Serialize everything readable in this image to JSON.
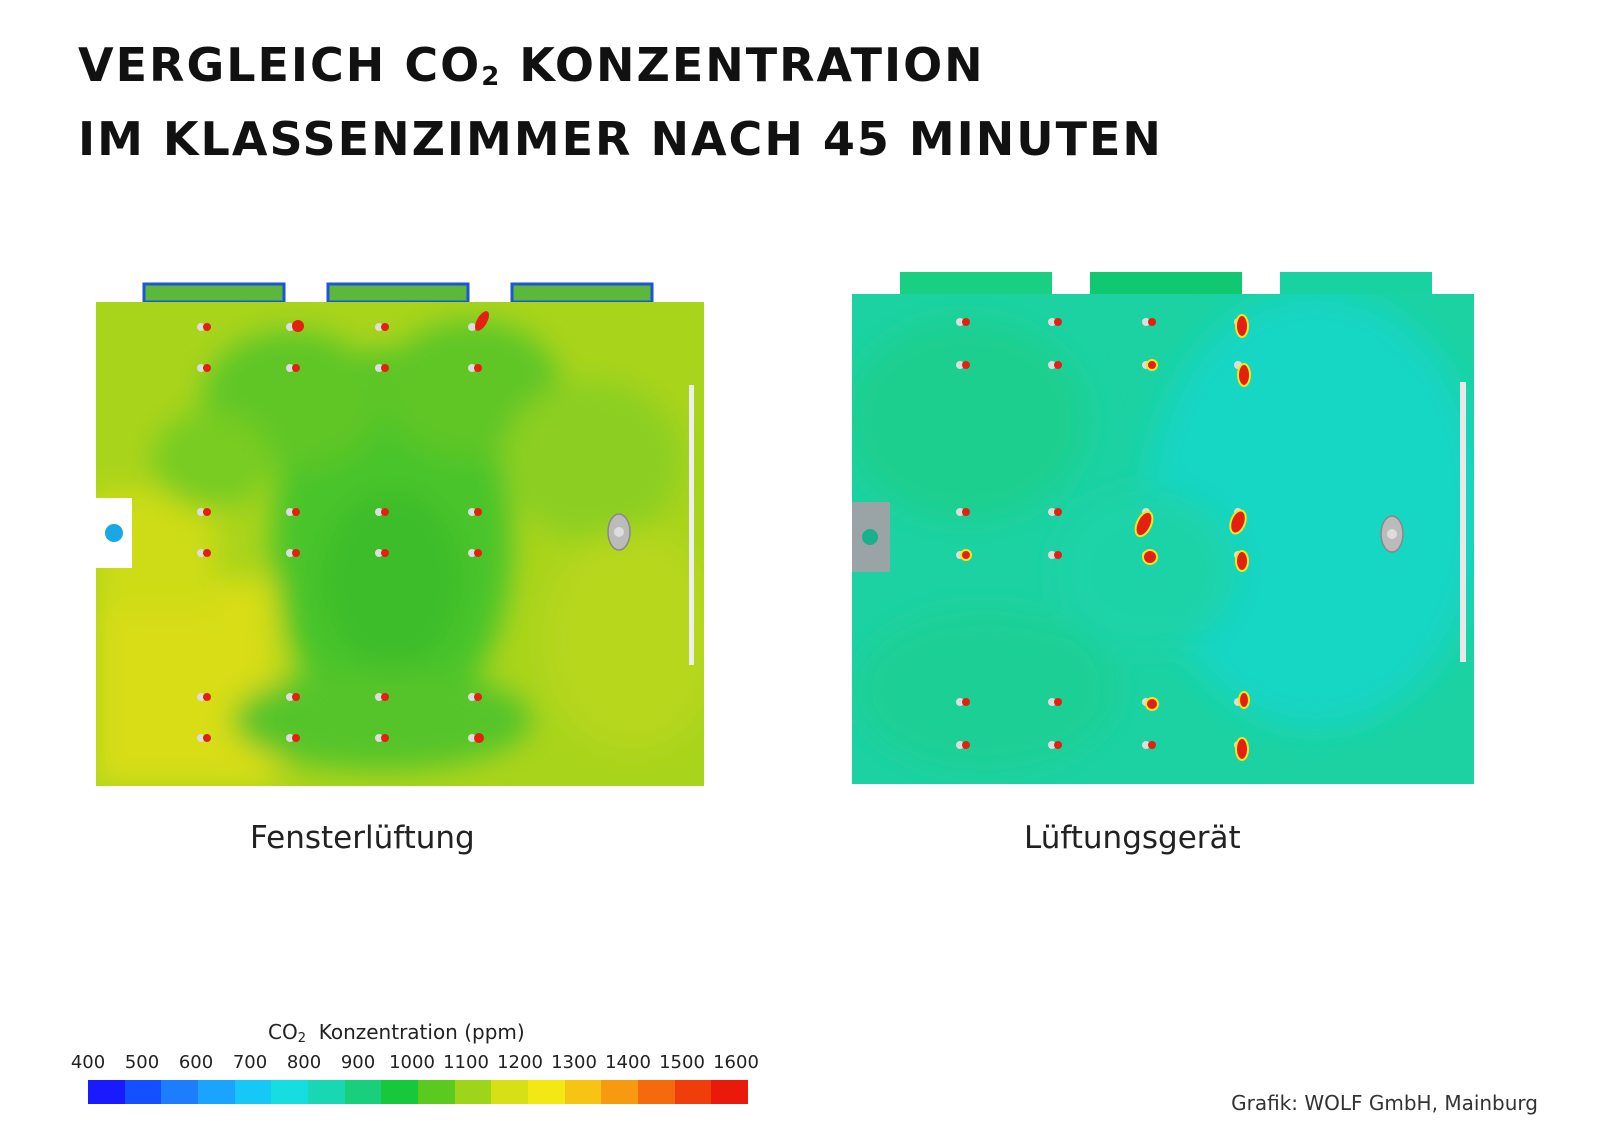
{
  "title": {
    "line1_prefix": "VERGLEICH CO",
    "line1_sub": "2",
    "line1_suffix": " KONZENTRATION",
    "line2": "IM KLASSENZIMMER NACH 45 MINUTEN"
  },
  "panels": [
    {
      "caption": "Fensterlüftung"
    },
    {
      "caption": "Lüftungsgerät"
    }
  ],
  "legend": {
    "title_prefix": "CO",
    "title_sub": "2",
    "title_suffix": "  Konzentration (ppm)",
    "ticks": [
      "400",
      "500",
      "600",
      "700",
      "800",
      "900",
      "1000",
      "1100",
      "1200",
      "1300",
      "1400",
      "1500",
      "1600"
    ],
    "colors": [
      "#1a1aff",
      "#1450ff",
      "#1c7dff",
      "#1aa3ff",
      "#16c8f5",
      "#16dde0",
      "#18d8b4",
      "#18cf7c",
      "#18c83c",
      "#5acb1e",
      "#9ed41a",
      "#d7e014",
      "#f4e814",
      "#f8c414",
      "#f89a10",
      "#f46a0c",
      "#ef3e0a",
      "#ea1a0a"
    ]
  },
  "credit": "Grafik: WOLF GmbH, Mainburg"
}
